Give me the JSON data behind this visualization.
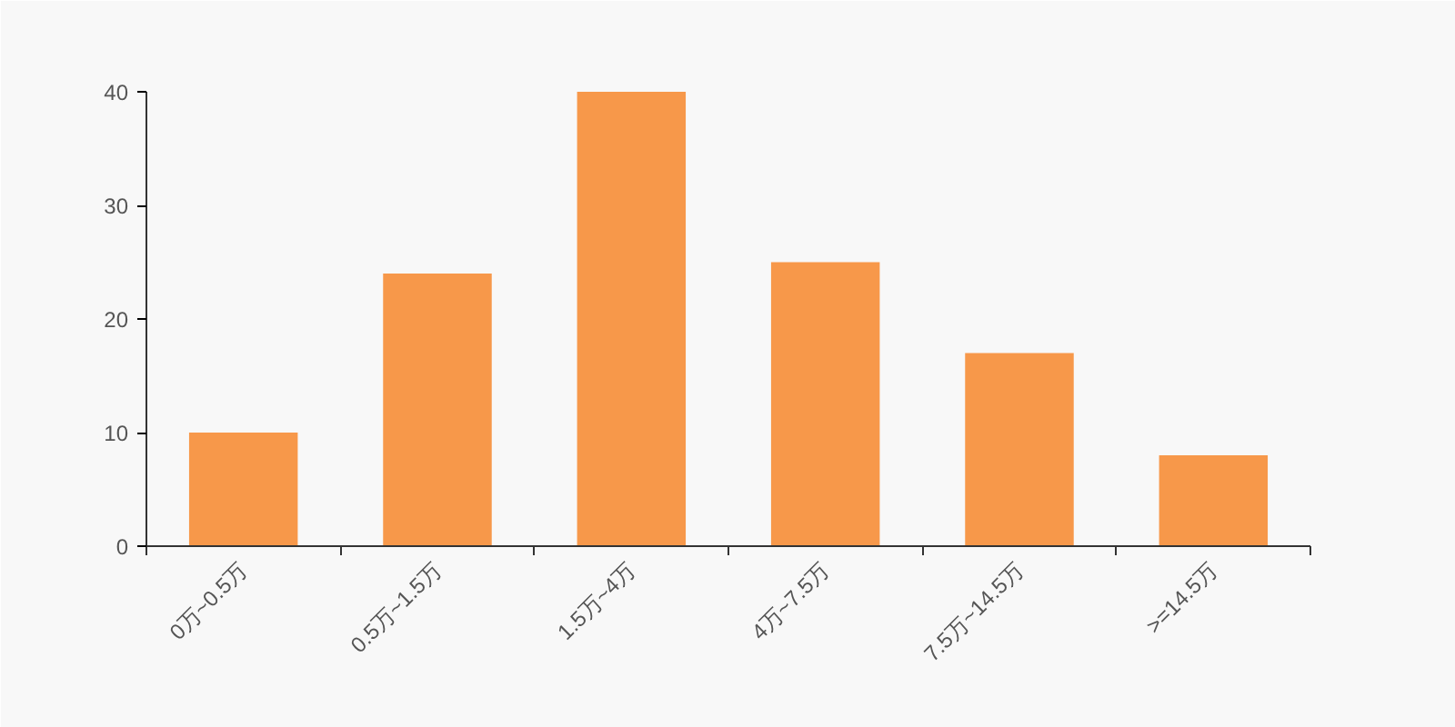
{
  "chart_data": {
    "type": "bar",
    "categories": [
      "0万~0.5万",
      "0.5万~1.5万",
      "1.5万~4万",
      "4万~7.5万",
      "7.5万~14.5万",
      ">=14.5万"
    ],
    "values": [
      10,
      24,
      40,
      25,
      17,
      8
    ],
    "color": "#f7984a",
    "ylim": [
      0,
      40
    ],
    "yticks": [
      0,
      10,
      20,
      30,
      40
    ],
    "grid": false
  }
}
